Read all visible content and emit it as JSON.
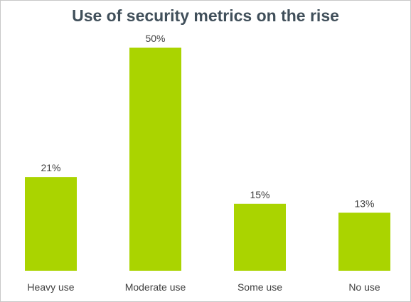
{
  "chart_data": {
    "type": "bar",
    "title": "Use of security metrics on the rise",
    "categories": [
      "Heavy use",
      "Moderate use",
      "Some use",
      "No use"
    ],
    "values": [
      21,
      50,
      15,
      13
    ],
    "data_labels": [
      "21%",
      "50%",
      "15%",
      "13%"
    ],
    "value_unit": "%",
    "ylim": [
      0,
      50
    ],
    "grid": false,
    "legend": "none",
    "bar_color": "#aad400",
    "xlabel": "",
    "ylabel": ""
  }
}
